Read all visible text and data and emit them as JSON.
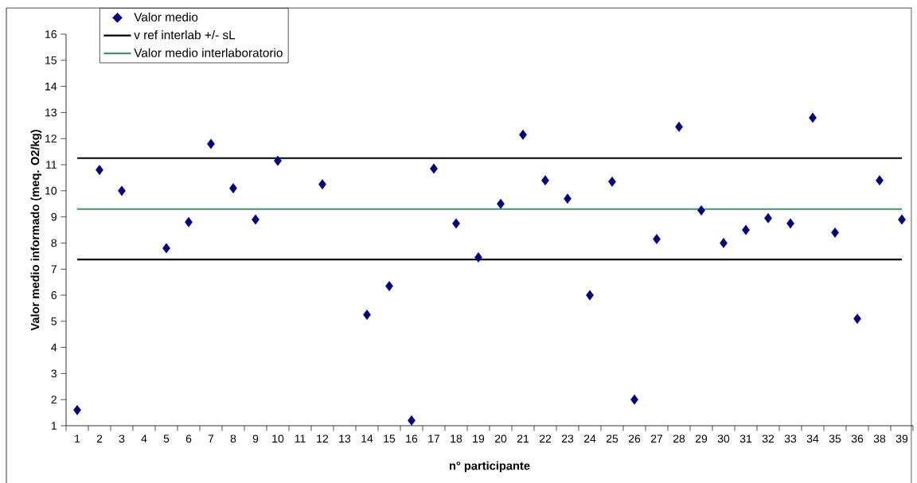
{
  "chart_data": {
    "type": "scatter",
    "xlabel": "n° participante",
    "ylabel": "Valor medio informado (meq. O2/kg)",
    "categories": [
      "1",
      "2",
      "3",
      "4",
      "5",
      "6",
      "7",
      "8",
      "9",
      "10",
      "11",
      "12",
      "13",
      "14",
      "15",
      "16",
      "17",
      "18",
      "19",
      "20",
      "21",
      "22",
      "23",
      "24",
      "25",
      "26",
      "27",
      "28",
      "29",
      "30",
      "31",
      "32",
      "33",
      "34",
      "35",
      "36",
      "38",
      "39"
    ],
    "series": [
      {
        "name": "Valor medio",
        "color": "#000080",
        "marker": "diamond",
        "values": [
          1.6,
          10.8,
          10.0,
          null,
          7.8,
          8.8,
          11.8,
          10.1,
          8.9,
          11.15,
          null,
          10.25,
          null,
          5.25,
          6.35,
          1.2,
          10.85,
          8.75,
          7.45,
          9.5,
          12.15,
          10.4,
          9.7,
          6.0,
          10.35,
          2.0,
          8.15,
          12.45,
          9.25,
          8.0,
          8.5,
          8.95,
          8.75,
          12.8,
          8.4,
          5.1,
          10.4,
          8.9
        ]
      }
    ],
    "ylim": [
      1,
      16
    ],
    "yticks": [
      1,
      2,
      3,
      4,
      5,
      6,
      7,
      8,
      9,
      10,
      11,
      12,
      13,
      14,
      15,
      16
    ],
    "ref_lines": [
      {
        "axis": "y",
        "value": 11.25,
        "label": "v ref interlab +/- sL",
        "color": "#000000"
      },
      {
        "axis": "y",
        "value": 7.37,
        "color": "#000000"
      },
      {
        "axis": "y",
        "value": 9.3,
        "label": "Valor medio interlaboratorio",
        "color": "#3a9a6a"
      }
    ],
    "grid": false,
    "legend": "top left"
  }
}
